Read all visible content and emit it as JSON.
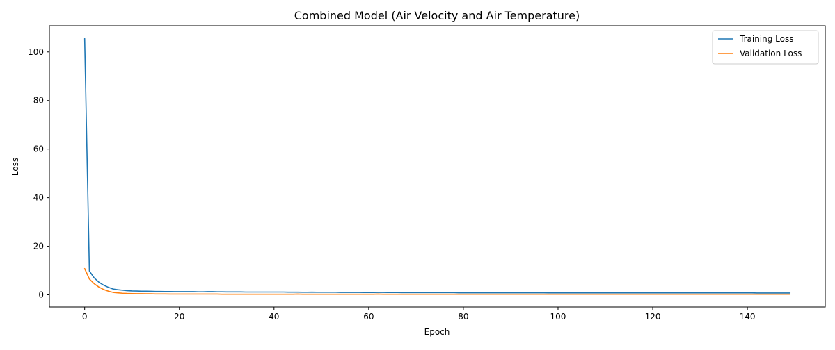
{
  "chart_data": {
    "type": "line",
    "title": "Combined Model (Air Velocity and Air Temperature)",
    "xlabel": "Epoch",
    "ylabel": "Loss",
    "xlim": [
      -7.45,
      156.45
    ],
    "ylim": [
      -5.0,
      110.8
    ],
    "x_ticks": [
      0,
      20,
      40,
      60,
      80,
      100,
      120,
      140
    ],
    "y_ticks": [
      0,
      20,
      40,
      60,
      80,
      100
    ],
    "grid": false,
    "legend_position": "top-right",
    "series": [
      {
        "name": "Training Loss",
        "color": "#1f77b4",
        "x": [
          0,
          1,
          2,
          3,
          4,
          5,
          6,
          7,
          8,
          9,
          10,
          11,
          12,
          13,
          14,
          15,
          16,
          17,
          18,
          19,
          20,
          21,
          22,
          23,
          24,
          25,
          26,
          27,
          28,
          29,
          30,
          31,
          32,
          33,
          34,
          35,
          36,
          37,
          38,
          39,
          40,
          41,
          42,
          43,
          44,
          45,
          46,
          47,
          48,
          49,
          50,
          51,
          52,
          53,
          54,
          55,
          56,
          57,
          58,
          59,
          60,
          61,
          62,
          63,
          64,
          65,
          66,
          67,
          68,
          69,
          70,
          71,
          72,
          73,
          74,
          75,
          76,
          77,
          78,
          79,
          80,
          81,
          82,
          83,
          84,
          85,
          86,
          87,
          88,
          89,
          90,
          91,
          92,
          93,
          94,
          95,
          96,
          97,
          98,
          99,
          100,
          101,
          102,
          103,
          104,
          105,
          106,
          107,
          108,
          109,
          110,
          111,
          112,
          113,
          114,
          115,
          116,
          117,
          118,
          119,
          120,
          121,
          122,
          123,
          124,
          125,
          126,
          127,
          128,
          129,
          130,
          131,
          132,
          133,
          134,
          135,
          136,
          137,
          138,
          139,
          140,
          141,
          142,
          143,
          144,
          145,
          146,
          147,
          148,
          149
        ],
        "y": [
          105.5,
          9.8,
          7.0,
          5.2,
          4.0,
          3.1,
          2.4,
          2.1,
          1.9,
          1.7,
          1.6,
          1.55,
          1.5,
          1.5,
          1.45,
          1.4,
          1.4,
          1.35,
          1.35,
          1.3,
          1.3,
          1.3,
          1.3,
          1.3,
          1.25,
          1.25,
          1.3,
          1.3,
          1.25,
          1.25,
          1.2,
          1.2,
          1.2,
          1.2,
          1.15,
          1.15,
          1.15,
          1.15,
          1.15,
          1.15,
          1.15,
          1.15,
          1.15,
          1.1,
          1.1,
          1.1,
          1.05,
          1.05,
          1.1,
          1.05,
          1.05,
          1.05,
          1.05,
          1.05,
          1.0,
          1.0,
          1.0,
          1.0,
          1.0,
          0.95,
          0.95,
          0.95,
          1.0,
          1.0,
          0.95,
          0.95,
          0.95,
          0.9,
          0.9,
          0.9,
          0.9,
          0.9,
          0.9,
          0.9,
          0.9,
          0.9,
          0.9,
          0.9,
          0.9,
          0.85,
          0.85,
          0.85,
          0.85,
          0.85,
          0.85,
          0.85,
          0.85,
          0.85,
          0.85,
          0.85,
          0.85,
          0.85,
          0.85,
          0.85,
          0.85,
          0.85,
          0.85,
          0.85,
          0.8,
          0.8,
          0.8,
          0.8,
          0.8,
          0.8,
          0.8,
          0.8,
          0.8,
          0.8,
          0.8,
          0.8,
          0.8,
          0.8,
          0.8,
          0.8,
          0.8,
          0.8,
          0.8,
          0.8,
          0.8,
          0.8,
          0.8,
          0.8,
          0.8,
          0.8,
          0.8,
          0.8,
          0.8,
          0.8,
          0.8,
          0.8,
          0.8,
          0.8,
          0.8,
          0.8,
          0.8,
          0.8,
          0.8,
          0.8,
          0.8,
          0.8,
          0.8,
          0.8,
          0.75,
          0.75,
          0.75,
          0.75,
          0.75,
          0.75,
          0.75,
          0.75
        ]
      },
      {
        "name": "Validation Loss",
        "color": "#ff7f0e",
        "x": [
          0,
          1,
          2,
          3,
          4,
          5,
          6,
          7,
          8,
          9,
          10,
          11,
          12,
          13,
          14,
          15,
          16,
          17,
          18,
          19,
          20,
          21,
          22,
          23,
          24,
          25,
          26,
          27,
          28,
          29,
          30,
          31,
          32,
          33,
          34,
          35,
          36,
          37,
          38,
          39,
          40,
          41,
          42,
          43,
          44,
          45,
          46,
          47,
          48,
          49,
          50,
          51,
          52,
          53,
          54,
          55,
          56,
          57,
          58,
          59,
          60,
          61,
          62,
          63,
          64,
          65,
          66,
          67,
          68,
          69,
          70,
          71,
          72,
          73,
          74,
          75,
          76,
          77,
          78,
          79,
          80,
          81,
          82,
          83,
          84,
          85,
          86,
          87,
          88,
          89,
          90,
          91,
          92,
          93,
          94,
          95,
          96,
          97,
          98,
          99,
          100,
          101,
          102,
          103,
          104,
          105,
          106,
          107,
          108,
          109,
          110,
          111,
          112,
          113,
          114,
          115,
          116,
          117,
          118,
          119,
          120,
          121,
          122,
          123,
          124,
          125,
          126,
          127,
          128,
          129,
          130,
          131,
          132,
          133,
          134,
          135,
          136,
          137,
          138,
          139,
          140,
          141,
          142,
          143,
          144,
          145,
          146,
          147,
          148,
          149
        ],
        "y": [
          10.8,
          6.5,
          4.6,
          3.2,
          2.2,
          1.5,
          1.0,
          0.8,
          0.65,
          0.55,
          0.5,
          0.45,
          0.45,
          0.4,
          0.4,
          0.35,
          0.35,
          0.35,
          0.3,
          0.3,
          0.3,
          0.3,
          0.3,
          0.3,
          0.3,
          0.3,
          0.3,
          0.3,
          0.3,
          0.25,
          0.25,
          0.25,
          0.25,
          0.25,
          0.25,
          0.25,
          0.25,
          0.25,
          0.25,
          0.25,
          0.25,
          0.25,
          0.25,
          0.25,
          0.25,
          0.3,
          0.25,
          0.25,
          0.25,
          0.25,
          0.25,
          0.25,
          0.25,
          0.25,
          0.25,
          0.25,
          0.25,
          0.25,
          0.25,
          0.25,
          0.25,
          0.25,
          0.3,
          0.25,
          0.25,
          0.25,
          0.25,
          0.25,
          0.25,
          0.25,
          0.25,
          0.25,
          0.25,
          0.25,
          0.25,
          0.25,
          0.25,
          0.25,
          0.25,
          0.25,
          0.25,
          0.25,
          0.25,
          0.25,
          0.25,
          0.25,
          0.25,
          0.25,
          0.25,
          0.25,
          0.25,
          0.25,
          0.25,
          0.25,
          0.25,
          0.25,
          0.25,
          0.25,
          0.25,
          0.25,
          0.25,
          0.25,
          0.25,
          0.25,
          0.25,
          0.25,
          0.25,
          0.25,
          0.25,
          0.25,
          0.25,
          0.25,
          0.25,
          0.25,
          0.25,
          0.25,
          0.25,
          0.25,
          0.25,
          0.25,
          0.25,
          0.25,
          0.25,
          0.25,
          0.25,
          0.25,
          0.25,
          0.25,
          0.25,
          0.25,
          0.25,
          0.25,
          0.25,
          0.25,
          0.25,
          0.25,
          0.25,
          0.25,
          0.25,
          0.25,
          0.25,
          0.25,
          0.25,
          0.25,
          0.25,
          0.25,
          0.25,
          0.25,
          0.25,
          0.25
        ]
      }
    ]
  }
}
